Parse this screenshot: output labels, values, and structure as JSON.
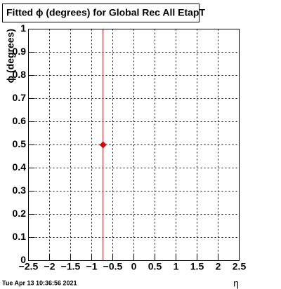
{
  "chart_data": {
    "type": "scatter",
    "title": "Fitted ϕ (degrees) for Global Rec All EtapT",
    "x_label": "η",
    "y_label": "ϕ (degrees)",
    "timestamp": "Tue Apr 13 10:36:56 2021",
    "x": [
      -0.73
    ],
    "values": [
      0.5
    ],
    "errors": [
      0.5
    ],
    "color": "#e00000",
    "xlim": [
      -2.5,
      2.5
    ],
    "xticks": [
      {
        "value": -2.5,
        "label": "−2.5"
      },
      {
        "value": -2,
        "label": "−2"
      },
      {
        "value": -1.5,
        "label": "−1.5"
      },
      {
        "value": -1,
        "label": "−1"
      },
      {
        "value": -0.5,
        "label": "−0.5"
      },
      0,
      0.5,
      1,
      1.5,
      2,
      2.5
    ],
    "ylim": [
      0,
      1
    ],
    "yticks": [
      0,
      0.1,
      0.2,
      0.3,
      0.4,
      0.5,
      0.6,
      0.7,
      0.8,
      0.9,
      1
    ],
    "grid": true
  }
}
